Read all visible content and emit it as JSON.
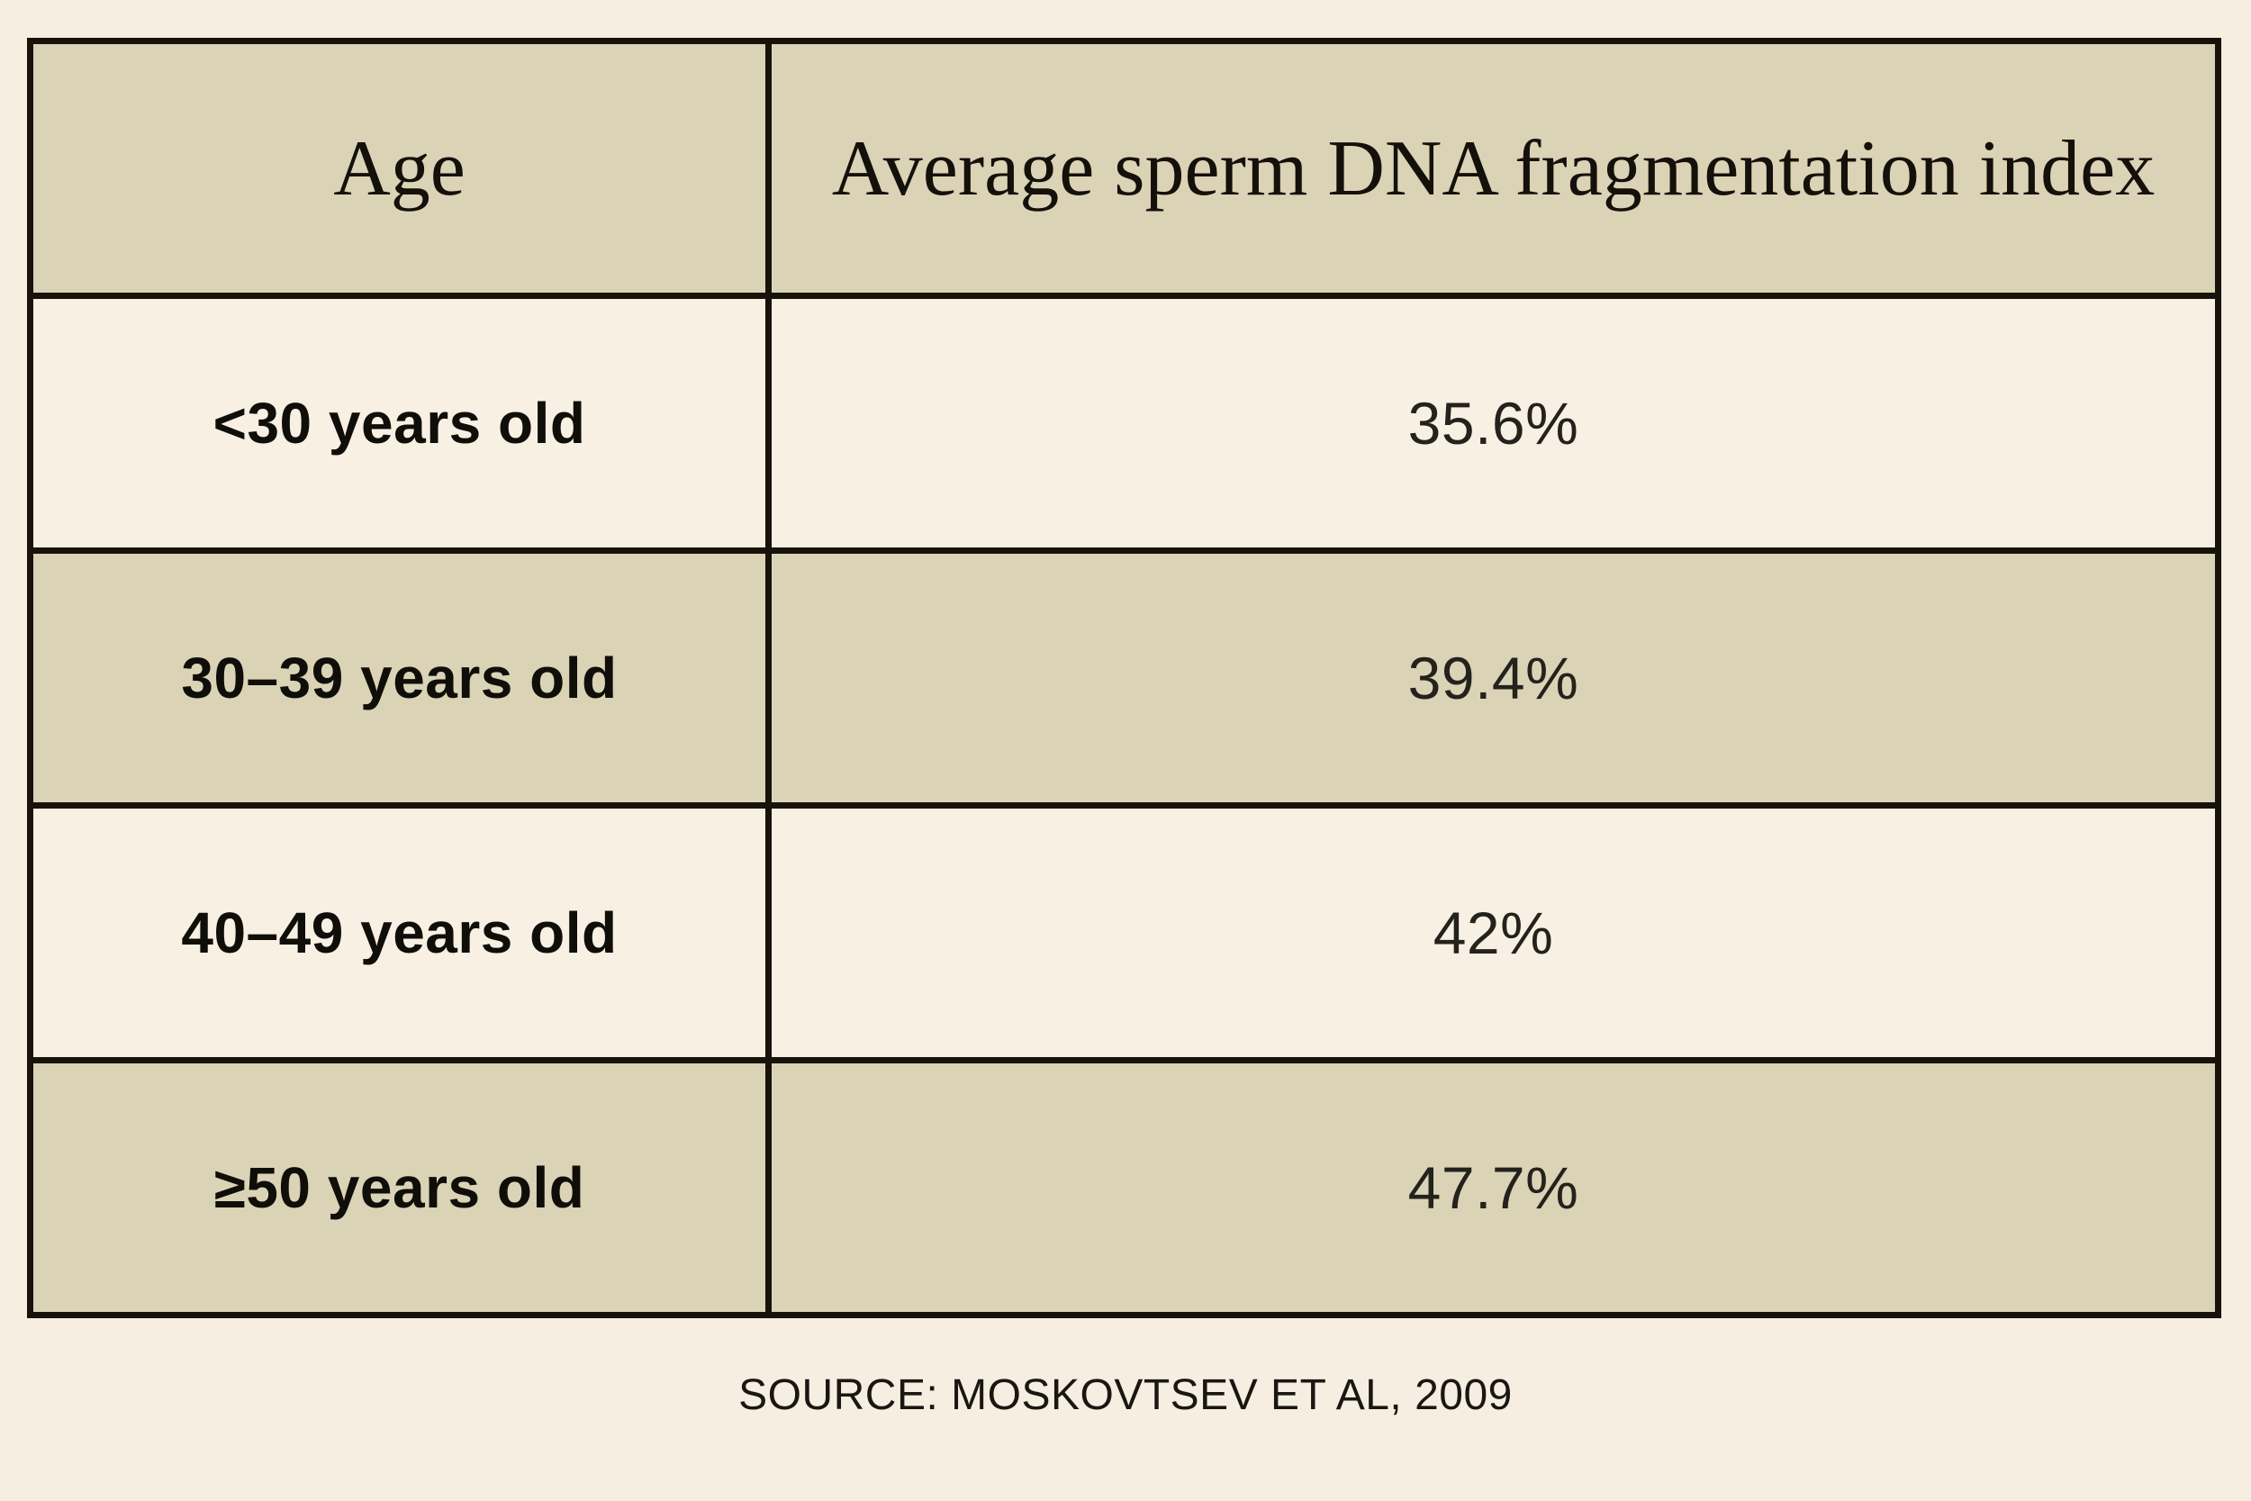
{
  "colors": {
    "page_bg": "#f6eee1",
    "cell_khaki": "#dbd3b6",
    "cell_cream": "#f8f0e3",
    "border": "#17130a",
    "header_text": "#14100a",
    "label_text": "#100e09",
    "value_text": "#24221c"
  },
  "table": {
    "headers": [
      "Age",
      "Average sperm DNA fragmentation index"
    ],
    "rows": [
      {
        "age": "<30 years old",
        "value": "35.6%"
      },
      {
        "age": "30–39 years old",
        "value": "39.4%"
      },
      {
        "age": "40–49 years old",
        "value": "42%"
      },
      {
        "age": "≥50 years old",
        "value": "47.7%"
      }
    ]
  },
  "source_note": "SOURCE: MOSKOVTSEV ET AL, 2009",
  "chart_data": {
    "type": "table",
    "columns": [
      "Age",
      "Average sperm DNA fragmentation index"
    ],
    "categories": [
      "<30 years old",
      "30–39 years old",
      "40–49 years old",
      "≥50 years old"
    ],
    "values": [
      35.6,
      39.4,
      42,
      47.7
    ],
    "unit": "%",
    "source": "SOURCE: MOSKOVTSEV ET AL, 2009"
  }
}
